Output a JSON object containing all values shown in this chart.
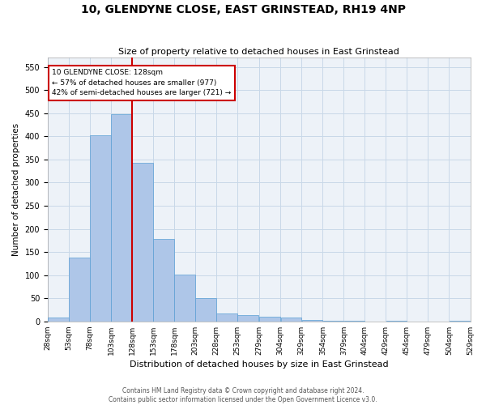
{
  "title": "10, GLENDYNE CLOSE, EAST GRINSTEAD, RH19 4NP",
  "subtitle": "Size of property relative to detached houses in East Grinstead",
  "xlabel": "Distribution of detached houses by size in East Grinstead",
  "ylabel": "Number of detached properties",
  "footer_line1": "Contains HM Land Registry data © Crown copyright and database right 2024.",
  "footer_line2": "Contains public sector information licensed under the Open Government Licence v3.0.",
  "bar_color": "#aec6e8",
  "bar_edge_color": "#5a9fd4",
  "grid_color": "#c8d8e8",
  "background_color": "#edf2f8",
  "vline_x": 128,
  "vline_color": "#cc0000",
  "annotation_text": "10 GLENDYNE CLOSE: 128sqm\n← 57% of detached houses are smaller (977)\n42% of semi-detached houses are larger (721) →",
  "annotation_box_color": "#cc0000",
  "ylim": [
    0,
    570
  ],
  "yticks": [
    0,
    50,
    100,
    150,
    200,
    250,
    300,
    350,
    400,
    450,
    500,
    550
  ],
  "bin_edges": [
    28,
    53,
    78,
    103,
    128,
    153,
    178,
    203,
    228,
    253,
    279,
    304,
    329,
    354,
    379,
    404,
    429,
    454,
    479,
    504,
    529
  ],
  "bar_heights": [
    8,
    138,
    402,
    448,
    342,
    179,
    102,
    50,
    17,
    13,
    10,
    8,
    4,
    2,
    1,
    0,
    1,
    0,
    0,
    2
  ],
  "tick_labels": [
    "28sqm",
    "53sqm",
    "78sqm",
    "103sqm",
    "128sqm",
    "153sqm",
    "178sqm",
    "203sqm",
    "228sqm",
    "253sqm",
    "279sqm",
    "304sqm",
    "329sqm",
    "354sqm",
    "379sqm",
    "404sqm",
    "429sqm",
    "454sqm",
    "479sqm",
    "504sqm",
    "529sqm"
  ]
}
